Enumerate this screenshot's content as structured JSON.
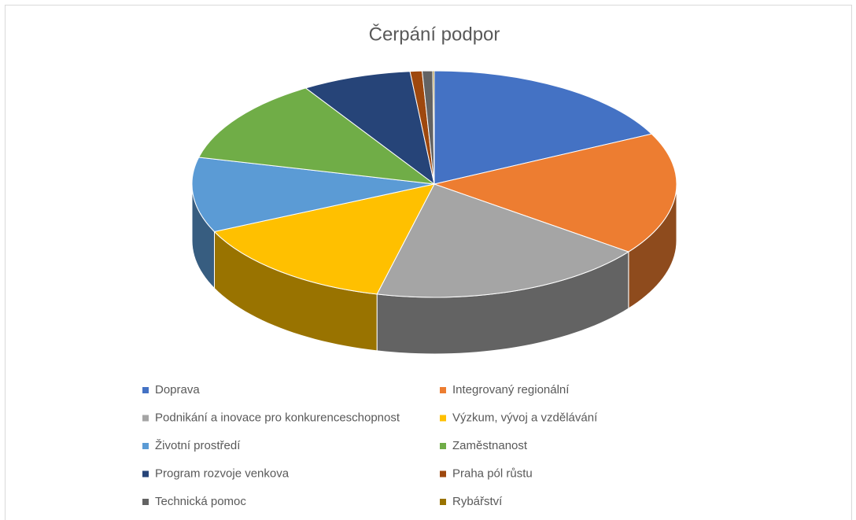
{
  "chart_data": {
    "type": "pie3d",
    "title": "Čerpání podpor",
    "categories": [
      "Doprava",
      "Integrovaný regionální",
      "Podnikání a inovace pro konkurenceschopnost",
      "Výzkum, vývoj a vzdělávání",
      "Životní prostředí",
      "Zaměstnanost",
      "Program rozvoje venkova",
      "Praha pól růstu",
      "Technická pomoc",
      "Rybářství"
    ],
    "values": [
      17.7,
      17.5,
      18.6,
      14.3,
      10.7,
      12.3,
      7.3,
      0.8,
      0.7,
      0.1
    ],
    "colors": [
      "#4472c4",
      "#ed7d31",
      "#a5a5a5",
      "#ffc000",
      "#5b9bd5",
      "#70ad47",
      "#264478",
      "#9e480e",
      "#636363",
      "#997300"
    ],
    "legend": "bottom"
  }
}
